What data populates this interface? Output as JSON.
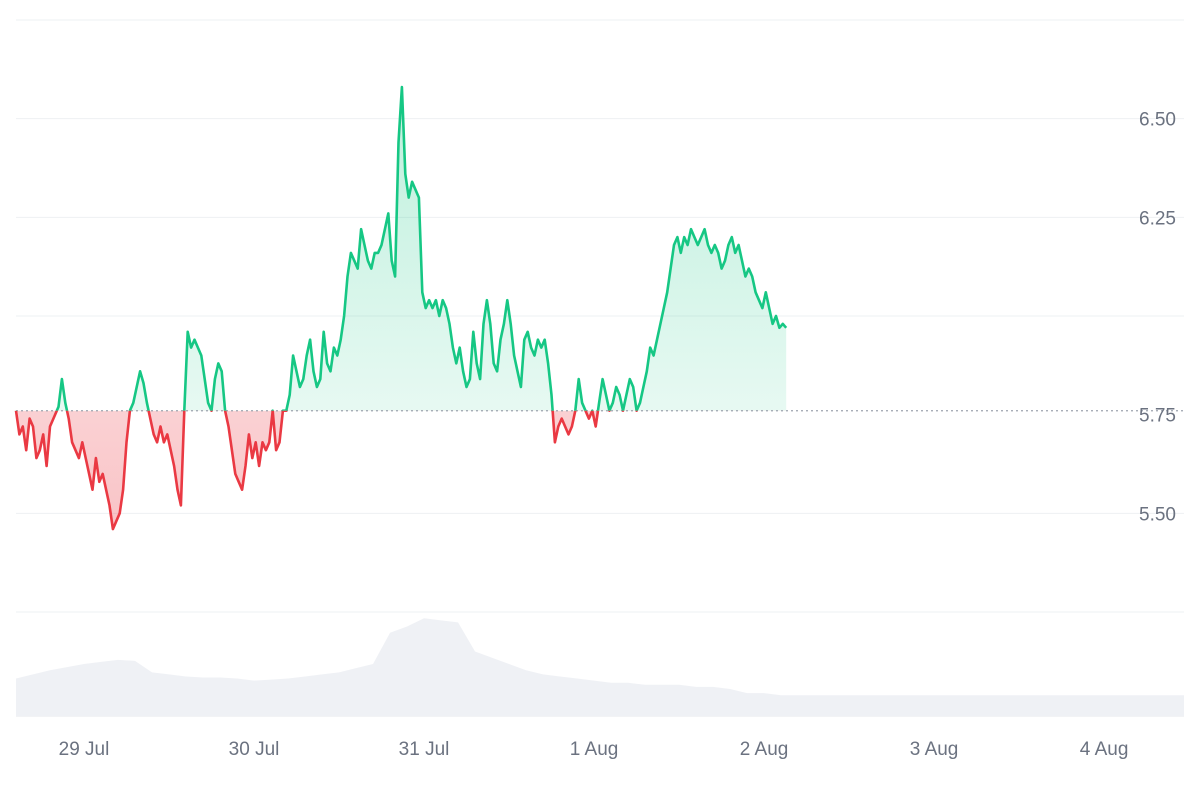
{
  "chart_data": {
    "type": "area",
    "baseline": 5.76,
    "ylim": [
      5.25,
      6.75
    ],
    "x_ticks": [
      {
        "label": "29 Jul",
        "x": 1
      },
      {
        "label": "30 Jul",
        "x": 2
      },
      {
        "label": "31 Jul",
        "x": 3
      },
      {
        "label": "1 Aug",
        "x": 4
      },
      {
        "label": "2 Aug",
        "x": 5
      },
      {
        "label": "3 Aug",
        "x": 6
      },
      {
        "label": "4 Aug",
        "x": 7
      }
    ],
    "y_ticks": [
      {
        "label": "6.50",
        "value": 6.5
      },
      {
        "label": "6.25",
        "value": 6.25
      },
      {
        "label": "5.75",
        "value": 5.75
      },
      {
        "label": "5.50",
        "value": 5.5
      }
    ],
    "grid_values": [
      6.5,
      6.25,
      6.0,
      5.5,
      5.25
    ],
    "xlim": [
      0.6,
      7.47
    ],
    "colors": {
      "up": "#16c784",
      "down": "#ea3943",
      "grid": "#eef0f3",
      "volume": "#eff1f5",
      "tick": "#6b7280"
    },
    "series": [
      {
        "values": [
          [
            0.6,
            5.76
          ],
          [
            0.62,
            5.7
          ],
          [
            0.64,
            5.72
          ],
          [
            0.66,
            5.66
          ],
          [
            0.68,
            5.74
          ],
          [
            0.7,
            5.72
          ],
          [
            0.72,
            5.64
          ],
          [
            0.74,
            5.66
          ],
          [
            0.76,
            5.7
          ],
          [
            0.78,
            5.62
          ],
          [
            0.8,
            5.72
          ],
          [
            0.82,
            5.74
          ],
          [
            0.84,
            5.76
          ],
          [
            0.85,
            5.77
          ],
          [
            0.87,
            5.84
          ],
          [
            0.89,
            5.78
          ],
          [
            0.91,
            5.74
          ],
          [
            0.93,
            5.68
          ],
          [
            0.95,
            5.66
          ],
          [
            0.97,
            5.64
          ],
          [
            0.99,
            5.68
          ],
          [
            1.01,
            5.64
          ],
          [
            1.03,
            5.6
          ],
          [
            1.05,
            5.56
          ],
          [
            1.07,
            5.64
          ],
          [
            1.09,
            5.58
          ],
          [
            1.11,
            5.6
          ],
          [
            1.13,
            5.56
          ],
          [
            1.15,
            5.52
          ],
          [
            1.17,
            5.46
          ],
          [
            1.19,
            5.48
          ],
          [
            1.21,
            5.5
          ],
          [
            1.23,
            5.56
          ],
          [
            1.25,
            5.68
          ],
          [
            1.27,
            5.76
          ],
          [
            1.29,
            5.78
          ],
          [
            1.31,
            5.82
          ],
          [
            1.33,
            5.86
          ],
          [
            1.35,
            5.83
          ],
          [
            1.37,
            5.78
          ],
          [
            1.39,
            5.74
          ],
          [
            1.41,
            5.7
          ],
          [
            1.43,
            5.68
          ],
          [
            1.45,
            5.72
          ],
          [
            1.47,
            5.68
          ],
          [
            1.49,
            5.7
          ],
          [
            1.51,
            5.66
          ],
          [
            1.53,
            5.62
          ],
          [
            1.55,
            5.56
          ],
          [
            1.57,
            5.52
          ],
          [
            1.59,
            5.76
          ],
          [
            1.61,
            5.96
          ],
          [
            1.63,
            5.92
          ],
          [
            1.65,
            5.94
          ],
          [
            1.67,
            5.92
          ],
          [
            1.69,
            5.9
          ],
          [
            1.71,
            5.84
          ],
          [
            1.73,
            5.78
          ],
          [
            1.75,
            5.76
          ],
          [
            1.77,
            5.84
          ],
          [
            1.79,
            5.88
          ],
          [
            1.81,
            5.86
          ],
          [
            1.83,
            5.76
          ],
          [
            1.85,
            5.72
          ],
          [
            1.87,
            5.66
          ],
          [
            1.89,
            5.6
          ],
          [
            1.91,
            5.58
          ],
          [
            1.93,
            5.56
          ],
          [
            1.95,
            5.62
          ],
          [
            1.97,
            5.7
          ],
          [
            1.99,
            5.64
          ],
          [
            2.01,
            5.68
          ],
          [
            2.03,
            5.62
          ],
          [
            2.05,
            5.68
          ],
          [
            2.07,
            5.66
          ],
          [
            2.09,
            5.68
          ],
          [
            2.11,
            5.76
          ],
          [
            2.13,
            5.66
          ],
          [
            2.15,
            5.68
          ],
          [
            2.17,
            5.76
          ],
          [
            2.19,
            5.76
          ],
          [
            2.21,
            5.8
          ],
          [
            2.23,
            5.9
          ],
          [
            2.25,
            5.86
          ],
          [
            2.27,
            5.82
          ],
          [
            2.29,
            5.84
          ],
          [
            2.31,
            5.9
          ],
          [
            2.33,
            5.94
          ],
          [
            2.35,
            5.86
          ],
          [
            2.37,
            5.82
          ],
          [
            2.39,
            5.84
          ],
          [
            2.41,
            5.96
          ],
          [
            2.43,
            5.88
          ],
          [
            2.45,
            5.86
          ],
          [
            2.47,
            5.92
          ],
          [
            2.49,
            5.9
          ],
          [
            2.51,
            5.94
          ],
          [
            2.53,
            6.0
          ],
          [
            2.55,
            6.1
          ],
          [
            2.57,
            6.16
          ],
          [
            2.59,
            6.14
          ],
          [
            2.61,
            6.12
          ],
          [
            2.63,
            6.22
          ],
          [
            2.65,
            6.18
          ],
          [
            2.67,
            6.14
          ],
          [
            2.69,
            6.12
          ],
          [
            2.71,
            6.16
          ],
          [
            2.73,
            6.16
          ],
          [
            2.75,
            6.18
          ],
          [
            2.77,
            6.22
          ],
          [
            2.79,
            6.26
          ],
          [
            2.81,
            6.14
          ],
          [
            2.83,
            6.1
          ],
          [
            2.85,
            6.44
          ],
          [
            2.87,
            6.58
          ],
          [
            2.89,
            6.36
          ],
          [
            2.91,
            6.3
          ],
          [
            2.93,
            6.34
          ],
          [
            2.95,
            6.32
          ],
          [
            2.97,
            6.3
          ],
          [
            2.99,
            6.06
          ],
          [
            3.01,
            6.02
          ],
          [
            3.03,
            6.04
          ],
          [
            3.05,
            6.02
          ],
          [
            3.07,
            6.04
          ],
          [
            3.09,
            6.0
          ],
          [
            3.11,
            6.04
          ],
          [
            3.13,
            6.02
          ],
          [
            3.15,
            5.98
          ],
          [
            3.17,
            5.92
          ],
          [
            3.19,
            5.88
          ],
          [
            3.21,
            5.92
          ],
          [
            3.23,
            5.86
          ],
          [
            3.25,
            5.82
          ],
          [
            3.27,
            5.84
          ],
          [
            3.29,
            5.96
          ],
          [
            3.31,
            5.88
          ],
          [
            3.33,
            5.84
          ],
          [
            3.35,
            5.98
          ],
          [
            3.37,
            6.04
          ],
          [
            3.39,
            5.98
          ],
          [
            3.41,
            5.88
          ],
          [
            3.43,
            5.86
          ],
          [
            3.45,
            5.94
          ],
          [
            3.47,
            5.98
          ],
          [
            3.49,
            6.04
          ],
          [
            3.51,
            5.98
          ],
          [
            3.53,
            5.9
          ],
          [
            3.55,
            5.86
          ],
          [
            3.57,
            5.82
          ],
          [
            3.59,
            5.94
          ],
          [
            3.61,
            5.96
          ],
          [
            3.63,
            5.92
          ],
          [
            3.65,
            5.9
          ],
          [
            3.67,
            5.94
          ],
          [
            3.69,
            5.92
          ],
          [
            3.71,
            5.94
          ],
          [
            3.73,
            5.88
          ],
          [
            3.75,
            5.8
          ],
          [
            3.77,
            5.68
          ],
          [
            3.79,
            5.72
          ],
          [
            3.81,
            5.74
          ],
          [
            3.83,
            5.72
          ],
          [
            3.85,
            5.7
          ],
          [
            3.87,
            5.72
          ],
          [
            3.89,
            5.76
          ],
          [
            3.91,
            5.84
          ],
          [
            3.93,
            5.78
          ],
          [
            3.95,
            5.76
          ],
          [
            3.97,
            5.74
          ],
          [
            3.99,
            5.76
          ],
          [
            4.01,
            5.72
          ],
          [
            4.03,
            5.78
          ],
          [
            4.05,
            5.84
          ],
          [
            4.07,
            5.8
          ],
          [
            4.09,
            5.76
          ],
          [
            4.11,
            5.78
          ],
          [
            4.13,
            5.82
          ],
          [
            4.15,
            5.8
          ],
          [
            4.17,
            5.76
          ],
          [
            4.19,
            5.8
          ],
          [
            4.21,
            5.84
          ],
          [
            4.23,
            5.82
          ],
          [
            4.25,
            5.76
          ],
          [
            4.27,
            5.78
          ],
          [
            4.29,
            5.82
          ],
          [
            4.31,
            5.86
          ],
          [
            4.33,
            5.92
          ],
          [
            4.35,
            5.9
          ],
          [
            4.37,
            5.94
          ],
          [
            4.39,
            5.98
          ],
          [
            4.41,
            6.02
          ],
          [
            4.43,
            6.06
          ],
          [
            4.45,
            6.12
          ],
          [
            4.47,
            6.18
          ],
          [
            4.49,
            6.2
          ],
          [
            4.51,
            6.16
          ],
          [
            4.53,
            6.2
          ],
          [
            4.55,
            6.18
          ],
          [
            4.57,
            6.22
          ],
          [
            4.59,
            6.2
          ],
          [
            4.61,
            6.18
          ],
          [
            4.63,
            6.2
          ],
          [
            4.65,
            6.22
          ],
          [
            4.67,
            6.18
          ],
          [
            4.69,
            6.16
          ],
          [
            4.71,
            6.18
          ],
          [
            4.73,
            6.16
          ],
          [
            4.75,
            6.12
          ],
          [
            4.77,
            6.14
          ],
          [
            4.79,
            6.18
          ],
          [
            4.81,
            6.2
          ],
          [
            4.83,
            6.16
          ],
          [
            4.85,
            6.18
          ],
          [
            4.87,
            6.14
          ],
          [
            4.89,
            6.1
          ],
          [
            4.91,
            6.12
          ],
          [
            4.93,
            6.1
          ],
          [
            4.95,
            6.06
          ],
          [
            4.97,
            6.04
          ],
          [
            4.99,
            6.02
          ],
          [
            5.01,
            6.06
          ],
          [
            5.03,
            6.02
          ],
          [
            5.05,
            5.98
          ],
          [
            5.07,
            6.0
          ],
          [
            5.09,
            5.97
          ],
          [
            5.11,
            5.98
          ],
          [
            5.13,
            5.97
          ]
        ]
      }
    ],
    "volume": [
      [
        0.6,
        0.36
      ],
      [
        0.7,
        0.4
      ],
      [
        0.8,
        0.44
      ],
      [
        0.9,
        0.47
      ],
      [
        1.0,
        0.5
      ],
      [
        1.1,
        0.52
      ],
      [
        1.2,
        0.54
      ],
      [
        1.3,
        0.53
      ],
      [
        1.4,
        0.42
      ],
      [
        1.5,
        0.4
      ],
      [
        1.6,
        0.38
      ],
      [
        1.7,
        0.37
      ],
      [
        1.8,
        0.37
      ],
      [
        1.9,
        0.36
      ],
      [
        2.0,
        0.34
      ],
      [
        2.1,
        0.35
      ],
      [
        2.2,
        0.36
      ],
      [
        2.3,
        0.38
      ],
      [
        2.4,
        0.4
      ],
      [
        2.5,
        0.42
      ],
      [
        2.6,
        0.46
      ],
      [
        2.7,
        0.5
      ],
      [
        2.8,
        0.8
      ],
      [
        2.9,
        0.86
      ],
      [
        3.0,
        0.94
      ],
      [
        3.1,
        0.92
      ],
      [
        3.2,
        0.9
      ],
      [
        3.3,
        0.62
      ],
      [
        3.4,
        0.56
      ],
      [
        3.5,
        0.5
      ],
      [
        3.6,
        0.44
      ],
      [
        3.7,
        0.4
      ],
      [
        3.8,
        0.38
      ],
      [
        3.9,
        0.36
      ],
      [
        4.0,
        0.34
      ],
      [
        4.1,
        0.32
      ],
      [
        4.2,
        0.32
      ],
      [
        4.3,
        0.3
      ],
      [
        4.4,
        0.3
      ],
      [
        4.5,
        0.3
      ],
      [
        4.6,
        0.28
      ],
      [
        4.7,
        0.28
      ],
      [
        4.8,
        0.26
      ],
      [
        4.9,
        0.22
      ],
      [
        5.0,
        0.22
      ],
      [
        5.1,
        0.2
      ],
      [
        5.2,
        0.2
      ]
    ]
  }
}
